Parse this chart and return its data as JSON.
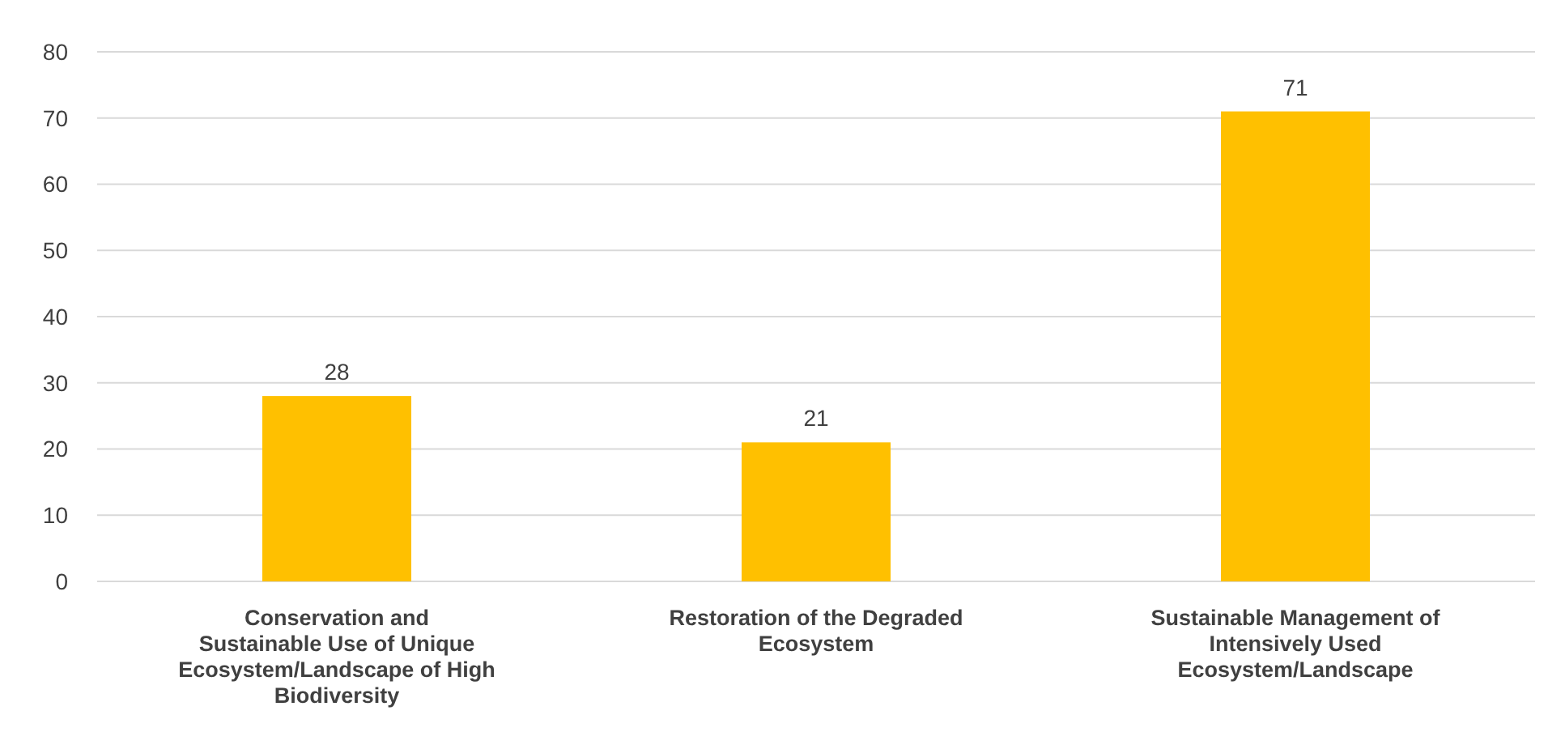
{
  "chart_data": {
    "type": "bar",
    "categories": [
      "Conservation and Sustainable Use of Unique Ecosystem/Landscape of High Biodiversity",
      "Restoration of the Degraded Ecosystem",
      "Sustainable Management of Intensively Used Ecosystem/Landscape"
    ],
    "values": [
      28,
      21,
      71
    ],
    "color": "#ffc000",
    "ylim": [
      0,
      80
    ],
    "yticks": [
      0,
      10,
      20,
      30,
      40,
      50,
      60,
      70,
      80
    ],
    "grid": "y",
    "data_labels": true
  }
}
